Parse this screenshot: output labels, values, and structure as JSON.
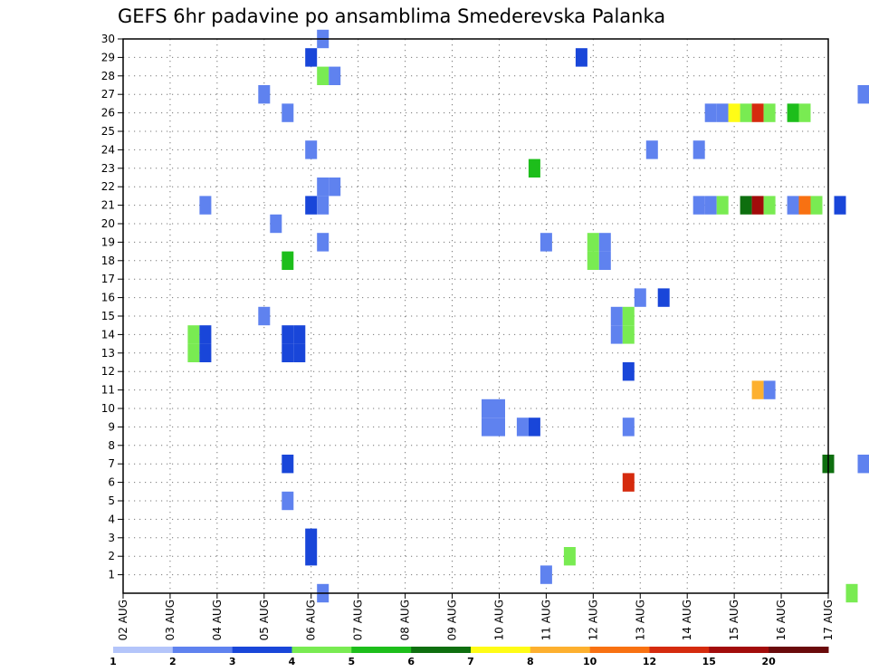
{
  "chart_data": {
    "type": "heatmap",
    "title": "GEFS 6hr padavine po ansamblima Smederevska Palanka",
    "xlabel": "",
    "ylabel": "",
    "x_ticks": [
      "02 AUG",
      "03 AUG",
      "04 AUG",
      "05 AUG",
      "06 AUG",
      "07 AUG",
      "08 AUG",
      "09 AUG",
      "10 AUG",
      "11 AUG",
      "12 AUG",
      "13 AUG",
      "14 AUG",
      "15 AUG",
      "16 AUG",
      "17 AUG"
    ],
    "x_range_days": [
      0,
      15
    ],
    "y_ticks": [
      1,
      2,
      3,
      4,
      5,
      6,
      7,
      8,
      9,
      10,
      11,
      12,
      13,
      14,
      15,
      16,
      17,
      18,
      19,
      20,
      21,
      22,
      23,
      24,
      25,
      26,
      27,
      28,
      29,
      30
    ],
    "y_range": [
      0,
      30
    ],
    "grid": true,
    "colorbar": {
      "labels": [
        "1",
        "2",
        "3",
        "4",
        "5",
        "6",
        "7",
        "8",
        "10",
        "12",
        "15",
        "20"
      ],
      "colors": [
        "#b4c5fa",
        "#5f82ef",
        "#1946d9",
        "#79eb52",
        "#1dbe1b",
        "#0e6f0f",
        "#fffc16",
        "#fdb02f",
        "#f87112",
        "#d52b0e",
        "#a20c0b",
        "#6a0a0b"
      ]
    },
    "cells": [
      [
        4.25,
        30,
        1
      ],
      [
        4.0,
        29,
        2
      ],
      [
        4.25,
        28,
        3
      ],
      [
        4.5,
        28,
        1
      ],
      [
        3.0,
        27,
        1
      ],
      [
        3.5,
        26,
        1
      ],
      [
        4.0,
        24,
        1
      ],
      [
        4.25,
        22,
        1
      ],
      [
        4.5,
        22,
        1
      ],
      [
        1.75,
        21,
        1
      ],
      [
        4.0,
        21,
        2
      ],
      [
        4.25,
        21,
        1
      ],
      [
        3.25,
        20,
        1
      ],
      [
        4.25,
        19,
        1
      ],
      [
        3.5,
        18,
        4
      ],
      [
        3.0,
        15,
        1
      ],
      [
        1.5,
        14,
        3
      ],
      [
        1.75,
        14,
        2
      ],
      [
        3.5,
        14,
        2
      ],
      [
        3.75,
        14,
        2
      ],
      [
        1.5,
        13,
        3
      ],
      [
        1.75,
        13,
        2
      ],
      [
        3.5,
        13,
        2
      ],
      [
        3.75,
        13,
        2
      ],
      [
        3.5,
        7,
        2
      ],
      [
        3.5,
        5,
        1
      ],
      [
        4.0,
        3,
        2
      ],
      [
        4.0,
        2,
        2
      ],
      [
        4.25,
        0,
        1
      ],
      [
        7.75,
        10,
        1
      ],
      [
        8.0,
        10,
        1
      ],
      [
        7.75,
        9,
        1
      ],
      [
        8.0,
        9,
        1
      ],
      [
        8.5,
        9,
        1
      ],
      [
        8.75,
        9,
        2
      ],
      [
        8.75,
        23,
        4
      ],
      [
        9.0,
        19,
        1
      ],
      [
        9.0,
        1,
        1
      ],
      [
        9.5,
        2,
        3
      ],
      [
        9.75,
        29,
        2
      ],
      [
        10.0,
        19,
        3
      ],
      [
        10.25,
        19,
        1
      ],
      [
        10.0,
        18,
        3
      ],
      [
        10.25,
        18,
        1
      ],
      [
        10.5,
        15,
        1
      ],
      [
        10.75,
        15,
        3
      ],
      [
        10.5,
        14,
        1
      ],
      [
        10.75,
        14,
        3
      ],
      [
        10.75,
        12,
        2
      ],
      [
        10.75,
        9,
        1
      ],
      [
        10.75,
        6,
        9
      ],
      [
        11.0,
        16,
        1
      ],
      [
        11.25,
        24,
        1
      ],
      [
        11.5,
        16,
        2
      ],
      [
        12.25,
        24,
        1
      ],
      [
        12.5,
        26,
        1
      ],
      [
        12.75,
        26,
        1
      ],
      [
        13.0,
        26,
        6
      ],
      [
        13.25,
        26,
        3
      ],
      [
        13.5,
        26,
        9
      ],
      [
        13.75,
        26,
        3
      ],
      [
        14.25,
        26,
        4
      ],
      [
        14.5,
        26,
        3
      ],
      [
        12.25,
        21,
        1
      ],
      [
        12.5,
        21,
        1
      ],
      [
        12.75,
        21,
        3
      ],
      [
        13.25,
        21,
        5
      ],
      [
        13.5,
        21,
        10
      ],
      [
        13.75,
        21,
        3
      ],
      [
        14.25,
        21,
        1
      ],
      [
        14.5,
        21,
        8
      ],
      [
        14.75,
        21,
        3
      ],
      [
        15.25,
        21,
        2
      ],
      [
        15.75,
        27,
        1
      ],
      [
        13.5,
        11,
        7
      ],
      [
        13.75,
        11,
        1
      ],
      [
        15.0,
        7,
        5
      ],
      [
        15.75,
        7,
        1
      ],
      [
        15.5,
        0,
        3
      ]
    ]
  }
}
